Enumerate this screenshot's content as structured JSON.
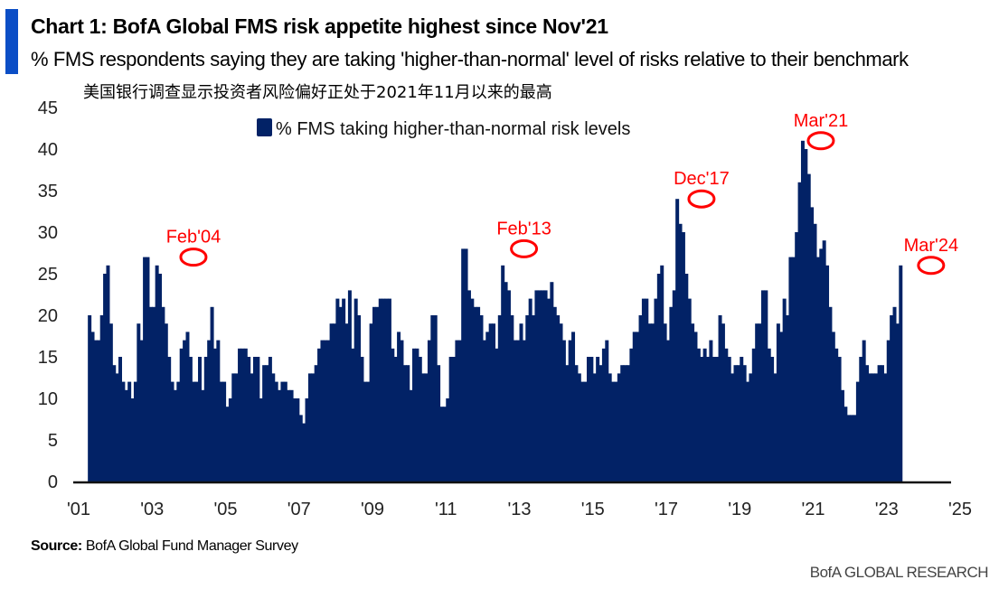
{
  "header": {
    "title": "Chart 1: BofA Global FMS risk appetite highest since Nov'21",
    "subtitle": "% FMS respondents saying they are taking 'higher-than-normal' level of risks relative to their benchmark",
    "cn_note": "美国银行调查显示投资者风险偏好正处于2021年11月以来的最高"
  },
  "footer": {
    "source_label": "Source:",
    "source_text": " BofA Global Fund Manager Survey",
    "brand": "BofA GLOBAL RESEARCH"
  },
  "colors": {
    "bar": "#022266",
    "accent": "#0b4ec6",
    "annotation": "#ff0000"
  },
  "chart_data": {
    "type": "area",
    "title": "% FMS taking higher-than-normal risk levels",
    "xlabel": "",
    "ylabel": "",
    "ylim": [
      0,
      45
    ],
    "yticks": [
      0,
      5,
      10,
      15,
      20,
      25,
      30,
      35,
      40,
      45
    ],
    "xlim": [
      2001.0,
      2025.0
    ],
    "xticks": [
      {
        "value": 2001,
        "label": "'01"
      },
      {
        "value": 2003,
        "label": "'03"
      },
      {
        "value": 2005,
        "label": "'05"
      },
      {
        "value": 2007,
        "label": "'07"
      },
      {
        "value": 2009,
        "label": "'09"
      },
      {
        "value": 2011,
        "label": "'11"
      },
      {
        "value": 2013,
        "label": "'13"
      },
      {
        "value": 2015,
        "label": "'15"
      },
      {
        "value": 2017,
        "label": "'17"
      },
      {
        "value": 2019,
        "label": "'19"
      },
      {
        "value": 2021,
        "label": "'21"
      },
      {
        "value": 2023,
        "label": "'23"
      },
      {
        "value": 2025,
        "label": "'25"
      }
    ],
    "grid": false,
    "legend": {
      "position": "top-center",
      "entries": [
        "% FMS taking higher-than-normal risk levels"
      ]
    },
    "start": {
      "year": 2001,
      "month": 4
    },
    "series": [
      {
        "name": "% FMS taking higher-than-normal risk levels",
        "values": [
          20,
          18,
          17,
          17,
          20,
          25,
          26,
          19,
          14,
          13,
          15,
          12,
          11,
          12,
          10,
          12,
          19,
          17,
          27,
          27,
          21,
          21,
          26,
          25,
          21,
          19,
          15,
          12,
          11,
          12,
          16,
          17,
          18,
          15,
          12,
          12,
          15,
          11,
          15,
          17,
          21,
          16,
          17,
          12,
          12,
          9,
          10,
          13,
          13,
          16,
          16,
          16,
          15,
          13,
          15,
          15,
          10,
          14,
          14,
          15,
          13,
          12,
          11,
          12,
          12,
          11,
          11,
          10,
          10,
          8,
          7,
          10,
          13,
          13,
          14,
          16,
          17,
          17,
          17,
          19,
          19,
          22,
          21,
          22,
          19,
          23,
          16,
          22,
          20,
          15,
          12,
          12,
          19,
          21,
          21,
          22,
          22,
          22,
          22,
          16,
          15,
          18,
          17,
          14,
          14,
          11,
          16,
          16,
          15,
          13,
          13,
          17,
          20,
          20,
          14,
          9,
          9,
          10,
          15,
          15,
          17,
          17,
          28,
          28,
          23,
          22,
          21,
          21,
          20,
          17,
          18,
          19,
          19,
          16,
          20,
          26,
          24,
          23,
          20,
          17,
          17,
          19,
          17,
          20,
          22,
          20,
          23,
          23,
          23,
          23,
          22,
          24,
          21,
          20,
          19,
          17,
          14,
          17,
          18,
          14,
          13,
          12,
          12,
          15,
          15,
          13,
          15,
          14,
          16,
          17,
          13,
          12,
          12,
          13,
          14,
          14,
          14,
          16,
          18,
          18,
          20,
          22,
          22,
          19,
          19,
          22,
          25,
          26,
          19,
          17,
          21,
          23,
          34,
          31,
          30,
          25,
          22,
          19,
          18,
          16,
          15,
          16,
          15,
          17,
          15,
          15,
          20,
          19,
          16,
          15,
          13,
          14,
          14,
          15,
          14,
          12,
          13,
          16,
          19,
          19,
          23,
          23,
          16,
          15,
          13,
          19,
          18,
          22,
          20,
          27,
          27,
          30,
          36,
          41,
          40,
          37,
          33,
          31,
          27,
          28,
          29,
          26,
          21,
          18,
          16,
          15,
          11,
          9,
          8,
          8,
          8,
          12,
          15,
          17,
          14,
          13,
          13,
          13,
          14,
          14,
          13,
          17,
          20,
          21,
          19,
          26
        ]
      }
    ],
    "annotations": [
      {
        "label": "Feb'04",
        "year": 2004,
        "month": 2,
        "value": 27
      },
      {
        "label": "Feb'13",
        "year": 2013,
        "month": 2,
        "value": 28
      },
      {
        "label": "Dec'17",
        "year": 2017,
        "month": 12,
        "value": 34
      },
      {
        "label": "Mar'21",
        "year": 2021,
        "month": 3,
        "value": 41
      },
      {
        "label": "Mar'24",
        "year": 2024,
        "month": 3,
        "value": 26
      }
    ]
  }
}
